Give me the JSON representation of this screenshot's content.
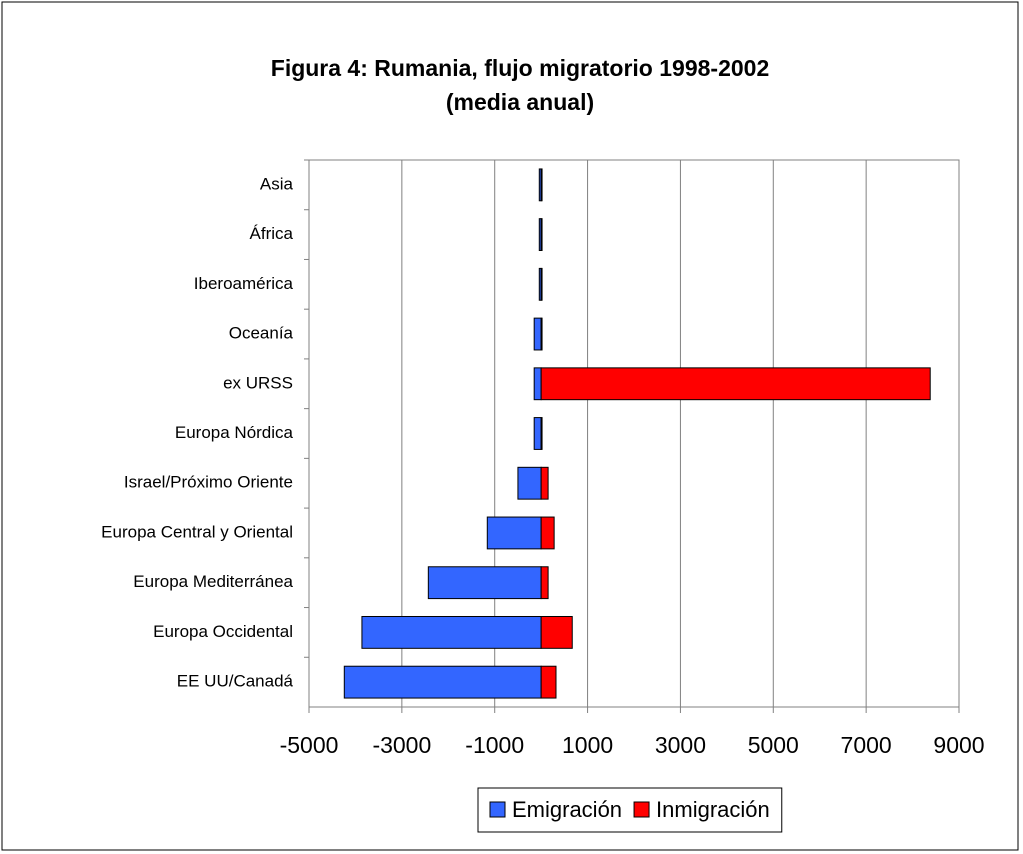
{
  "chart_data": {
    "type": "bar",
    "orientation": "horizontal",
    "title": [
      "Figura 4: Rumania, flujo migratorio 1998-2002",
      "(media anual)"
    ],
    "categories": [
      "Asia",
      "África",
      "Iberoamérica",
      "Oceanía",
      "ex URSS",
      "Europa Nórdica",
      "Israel/Próximo Oriente",
      "Europa Central y Oriental",
      "Europa Mediterránea",
      "Europa Occidental",
      "EE UU/Canadá"
    ],
    "series": [
      {
        "name": "Emigración",
        "color": "#3366ff",
        "values": [
          -40,
          -40,
          -40,
          -150,
          -150,
          -150,
          -500,
          -1160,
          -2430,
          -3860,
          -4240
        ]
      },
      {
        "name": "Inmigración",
        "color": "#ff0000",
        "values": [
          20,
          20,
          20,
          20,
          8380,
          20,
          150,
          280,
          150,
          670,
          320
        ]
      }
    ],
    "xlim": [
      -5000,
      9000
    ],
    "xticks": [
      -5000,
      -3000,
      -1000,
      1000,
      3000,
      5000,
      7000,
      9000
    ],
    "grid": true,
    "legend": "bottom"
  }
}
